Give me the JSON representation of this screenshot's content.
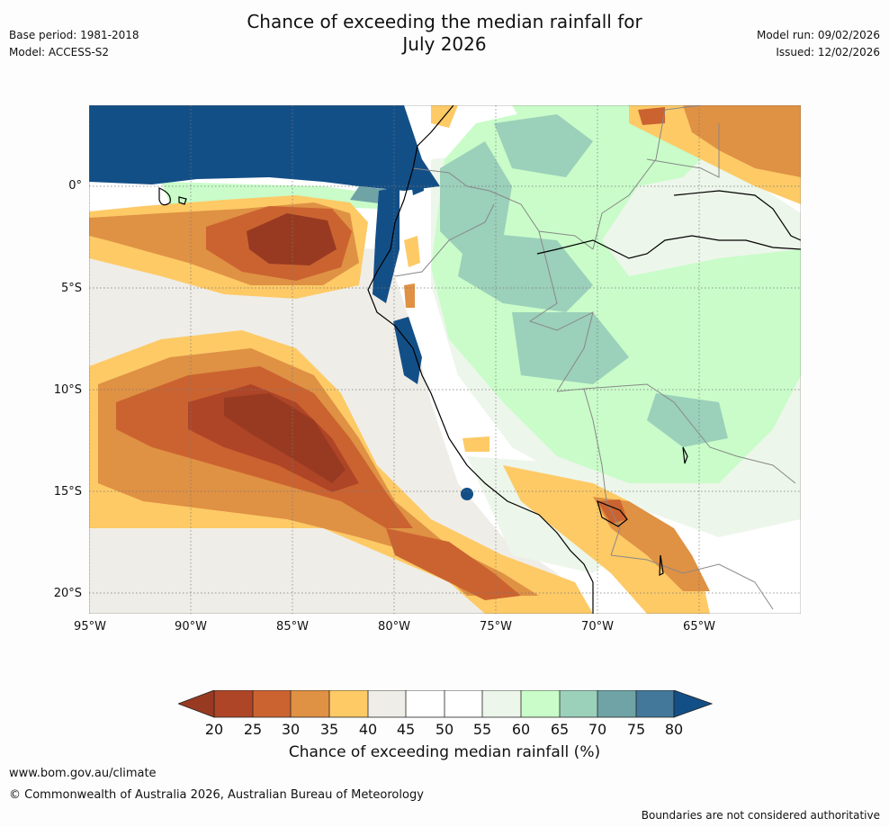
{
  "header": {
    "title_line1": "Chance of exceeding the median rainfall for",
    "title_line2": "July 2026",
    "base_period": "Base period: 1981-2018",
    "model": "Model: ACCESS-S2",
    "model_run": "Model run: 09/02/2026",
    "issued": "Issued: 12/02/2026"
  },
  "map": {
    "lat_labels": [
      "0°",
      "5°S",
      "10°S",
      "15°S",
      "20°S"
    ],
    "lon_labels": [
      "95°W",
      "90°W",
      "85°W",
      "80°W",
      "75°W",
      "70°W",
      "65°W"
    ],
    "colors": {
      "c20": "#983a22",
      "c25": "#ae4527",
      "c30": "#cb6330",
      "c35": "#df9144",
      "c40": "#fdca66",
      "c45": "#efede7",
      "c50": "#ffffff",
      "c60": "#edf6ea",
      "c65": "#c9fcc9",
      "c70": "#9bd0ba",
      "c75": "#6fa3a5",
      "c80": "#134f87"
    }
  },
  "colorbar": {
    "ticks": [
      "20",
      "25",
      "30",
      "35",
      "40",
      "45",
      "50",
      "55",
      "60",
      "65",
      "70",
      "75",
      "80"
    ],
    "label": "Chance of exceeding median rainfall (%)",
    "colors": [
      "#983a22",
      "#ae4527",
      "#cb6330",
      "#df9144",
      "#fdca66",
      "#efede7",
      "#ffffff",
      "#ffffff",
      "#edf6ea",
      "#c9fcc9",
      "#9bd0ba",
      "#6fa3a5",
      "#43789a",
      "#134f87"
    ]
  },
  "footer": {
    "url": "www.bom.gov.au/climate",
    "copyright": "© Commonwealth of Australia 2026, Australian Bureau of Meteorology",
    "disclaimer": "Boundaries are not considered authoritative"
  }
}
